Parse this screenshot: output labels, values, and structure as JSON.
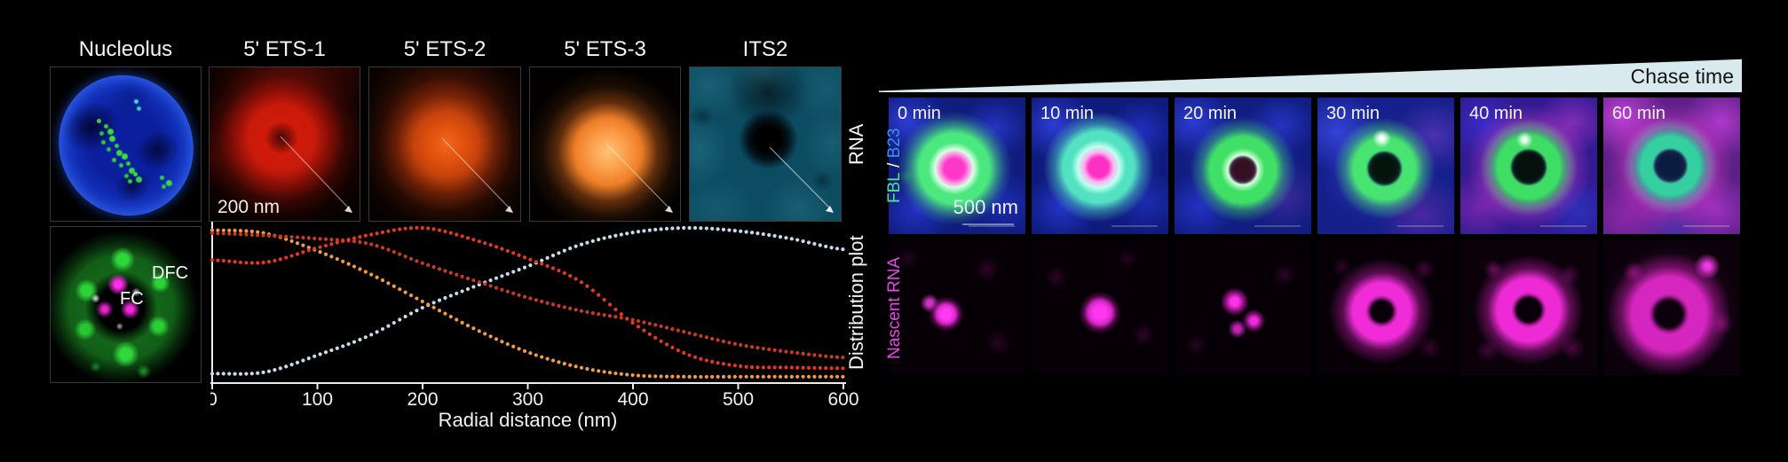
{
  "left_panel": {
    "col_labels": [
      "Nucleolus",
      "5' ETS-1",
      "5' ETS-2",
      "5' ETS-3",
      "ITS2"
    ],
    "rna_axis_label": "RNA",
    "scale_bar_label": "200 nm",
    "dfc_label": "DFC",
    "fc_label": "FC",
    "distribution_axis_label": "Distribution plot"
  },
  "chart_data": {
    "type": "line",
    "style": "dotted profile curves, no grid, no y-axis ticks",
    "xlabel": "Radial distance (nm)",
    "ylabel": "",
    "x_ticks": [
      0,
      100,
      200,
      300,
      400,
      500,
      600
    ],
    "xlim": [
      0,
      600
    ],
    "ylim": [
      0,
      1.05
    ],
    "grid": false,
    "legend": "none (curve colors match RNA probe panel colors)",
    "x": [
      0,
      50,
      100,
      150,
      200,
      250,
      300,
      350,
      400,
      450,
      500,
      550,
      600
    ],
    "series": [
      {
        "name": "5' ETS-1",
        "color": "#e63726",
        "values": [
          0.79,
          0.775,
          0.87,
          0.955,
          1.0,
          0.92,
          0.8,
          0.65,
          0.38,
          0.18,
          0.1,
          0.09,
          0.085
        ]
      },
      {
        "name": "5' ETS-2",
        "color": "#c93a22",
        "values": [
          0.965,
          0.95,
          0.93,
          0.895,
          0.77,
          0.655,
          0.545,
          0.46,
          0.4,
          0.32,
          0.24,
          0.19,
          0.155
        ]
      },
      {
        "name": "5' ETS-3",
        "color": "#f29a48",
        "values": [
          0.985,
          0.965,
          0.85,
          0.7,
          0.52,
          0.34,
          0.19,
          0.09,
          0.04,
          0.03,
          0.03,
          0.03,
          0.03
        ]
      },
      {
        "name": "ITS2",
        "color": "#c3dcea",
        "values": [
          0.05,
          0.06,
          0.17,
          0.3,
          0.48,
          0.62,
          0.75,
          0.89,
          0.97,
          1.0,
          0.98,
          0.93,
          0.86
        ]
      }
    ]
  },
  "right_panel": {
    "chase_time_label": "Chase time",
    "times": [
      "0 min",
      "10 min",
      "20 min",
      "30 min",
      "40 min",
      "60 min"
    ],
    "row1_label": {
      "fbl": "FBL",
      "sep": " / ",
      "b23": "B23"
    },
    "row2_label": "Nascent RNA",
    "scale_bar_label": "500 nm",
    "colors": {
      "fbl": "#52e47c",
      "b23": "#3f8fe8",
      "nascent_rna": "#e24ae2",
      "wedge": "#d9eaef"
    }
  }
}
